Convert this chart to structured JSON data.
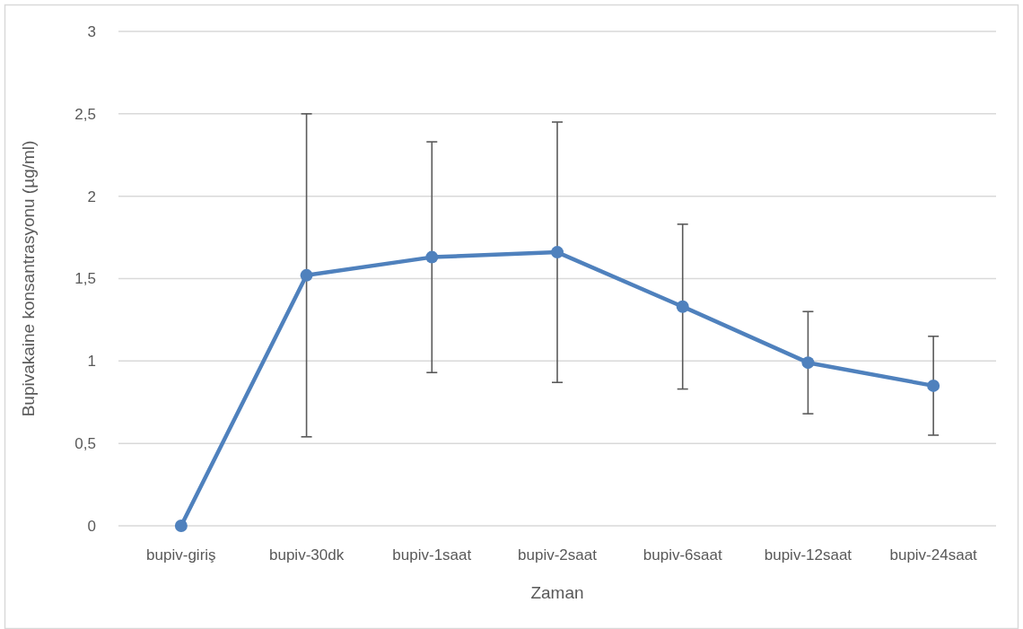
{
  "chart_data": {
    "type": "line",
    "xlabel": "Zaman",
    "ylabel": "Bupivakaine konsantrasyonu (µg/ml)",
    "categories": [
      "bupiv-giriş",
      "bupiv-30dk",
      "bupiv-1saat",
      "bupiv-2saat",
      "bupiv-6saat",
      "bupiv-12saat",
      "bupiv-24saat"
    ],
    "values": [
      0,
      1.52,
      1.63,
      1.66,
      1.33,
      0.99,
      0.85
    ],
    "errors": [
      null,
      0.98,
      0.7,
      0.79,
      0.5,
      0.31,
      0.3
    ],
    "color": "#4f81bd",
    "ylim": [
      0,
      3
    ],
    "yticks": [
      0,
      {
        "value": 0.5,
        "label": "0,5"
      },
      1,
      {
        "value": 1.5,
        "label": "1,5"
      },
      2,
      {
        "value": 2.5,
        "label": "2,5"
      },
      3
    ],
    "grid": "y",
    "marker": "circle",
    "line_style": "solid"
  }
}
